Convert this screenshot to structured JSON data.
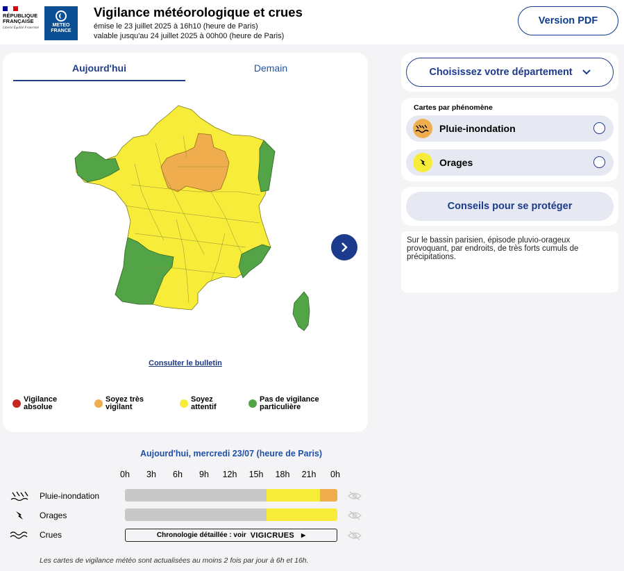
{
  "header": {
    "rf_name_line1": "RÉPUBLIQUE",
    "rf_name_line2": "FRANÇAISE",
    "rf_motto": "Liberté Égalité Fraternité",
    "mf_line1": "METEO",
    "mf_line2": "FRANCE",
    "title": "Vigilance météorologique et crues",
    "issued": "émise le 23 juillet 2025 à 16h10 (heure de Paris)",
    "valid_until": "valable jusqu'au 24 juillet 2025 à 00h00 (heure de Paris)",
    "pdf_button": "Version PDF"
  },
  "map": {
    "tabs": [
      {
        "label": "Aujourd'hui",
        "selected": true
      },
      {
        "label": "Demain",
        "selected": false
      }
    ],
    "bulletin_link": "Consulter le bulletin",
    "colors": {
      "red": "#c6271f",
      "orange": "#f0ad4e",
      "yellow": "#f8ec3b",
      "green": "#52a447",
      "border": "#7a7a1c"
    },
    "legend": [
      {
        "line1": "Vigilance",
        "line2": "absolue",
        "color": "#c6271f"
      },
      {
        "line1": "Soyez très",
        "line2": "vigilant",
        "color": "#f0ad4e"
      },
      {
        "line1": "Soyez",
        "line2": "attentif",
        "color": "#f8ec3b"
      },
      {
        "line1": "Pas de vigilance",
        "line2": "particulière",
        "color": "#52a447"
      }
    ]
  },
  "sidebar": {
    "department_button": "Choisissez votre département",
    "phenomena_title": "Cartes par phénomène",
    "phenomena": [
      {
        "label": "Pluie-inondation",
        "icon": "rain-flood-icon",
        "color": "#f0ad4e"
      },
      {
        "label": "Orages",
        "icon": "lightning-icon",
        "color": "#f8ec3b"
      }
    ],
    "advice_button": "Conseils pour se protéger",
    "comment": "Sur le bassin parisien, épisode pluvio-orageux provoquant, par endroits, de très forts cumuls de précipitations."
  },
  "timeline": {
    "title": "Aujourd'hui, mercredi 23/07 (heure de Paris)",
    "hours": [
      "0h",
      "3h",
      "6h",
      "9h",
      "12h",
      "15h",
      "18h",
      "21h",
      "0h"
    ],
    "rows": [
      {
        "label": "Pluie-inondation",
        "icon": "rain-flood-icon",
        "segments": [
          {
            "color": "#c8c8c8",
            "fraction": 0.667
          },
          {
            "color": "#f8ec3b",
            "fraction": 0.25
          },
          {
            "color": "#f0ad4e",
            "fraction": 0.083
          }
        ]
      },
      {
        "label": "Orages",
        "icon": "lightning-icon",
        "segments": [
          {
            "color": "#c8c8c8",
            "fraction": 0.667
          },
          {
            "color": "#f8ec3b",
            "fraction": 0.333
          }
        ]
      },
      {
        "label": "Crues",
        "icon": "flood-waves-icon"
      }
    ],
    "vigicrues_prefix": "Chronologie détaillée : voir",
    "vigicrues_brand": "VIGICRUES",
    "update_note": "Les cartes de vigilance météo sont actualisées au moins 2 fois par jour à 6h et 16h."
  }
}
